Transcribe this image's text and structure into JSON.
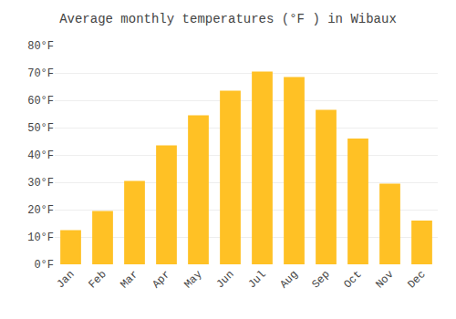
{
  "chart_data": {
    "type": "bar",
    "title": "Average monthly temperatures (°F ) in Wibaux",
    "categories": [
      "Jan",
      "Feb",
      "Mar",
      "Apr",
      "May",
      "Jun",
      "Jul",
      "Aug",
      "Sep",
      "Oct",
      "Nov",
      "Dec"
    ],
    "values": [
      12.5,
      19.5,
      30.5,
      43.5,
      54.5,
      63.5,
      70.5,
      68.5,
      56.5,
      46.0,
      29.5,
      16.0
    ],
    "color": "#FFC125",
    "ylim": [
      0,
      80
    ],
    "yticks": [
      {
        "value": 0,
        "label": "0°F"
      },
      {
        "value": 10,
        "label": "10°F"
      },
      {
        "value": 20,
        "label": "20°F"
      },
      {
        "value": 30,
        "label": "30°F"
      },
      {
        "value": 40,
        "label": "40°F"
      },
      {
        "value": 50,
        "label": "50°F"
      },
      {
        "value": 60,
        "label": "60°F"
      },
      {
        "value": 70,
        "label": "70°F"
      },
      {
        "value": 80,
        "label": "80°F"
      }
    ],
    "grid": true
  }
}
